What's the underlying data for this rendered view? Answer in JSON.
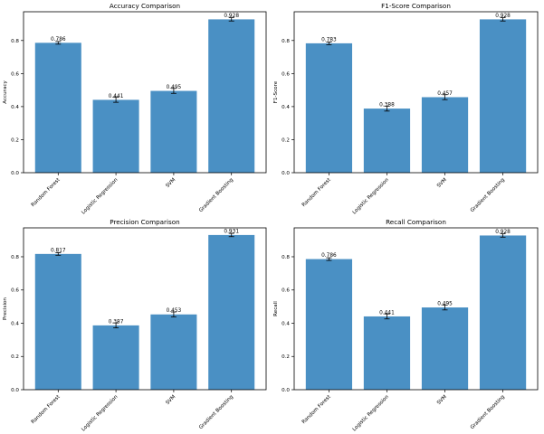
{
  "figure": {
    "bar_color": "#4a90c4",
    "error_color": "#000000",
    "axis_color": "#000000"
  },
  "chart_data": [
    {
      "type": "bar",
      "title": "Accuracy Comparison",
      "xlabel": "",
      "ylabel": "Accuracy",
      "categories": [
        "Random Forest",
        "Logistic Regression",
        "SVM",
        "Gradient Boosting"
      ],
      "values": [
        0.786,
        0.441,
        0.495,
        0.928
      ],
      "value_labels": [
        "0.786",
        "0.441",
        "0.495",
        "0.928"
      ],
      "errors": [
        0.008,
        0.015,
        0.015,
        0.01
      ],
      "ylim": [
        0,
        0.974
      ],
      "yticks": [
        0.0,
        0.2,
        0.4,
        0.6,
        0.8
      ],
      "ytick_labels": [
        "0.0",
        "0.2",
        "0.4",
        "0.6",
        "0.8"
      ],
      "grid": false
    },
    {
      "type": "bar",
      "title": "F1-Score Comparison",
      "xlabel": "",
      "ylabel": "F1-Score",
      "categories": [
        "Random Forest",
        "Logistic Regression",
        "SVM",
        "Gradient Boosting"
      ],
      "values": [
        0.783,
        0.388,
        0.457,
        0.928
      ],
      "value_labels": [
        "0.783",
        "0.388",
        "0.457",
        "0.928"
      ],
      "errors": [
        0.008,
        0.015,
        0.015,
        0.01
      ],
      "ylim": [
        0,
        0.974
      ],
      "yticks": [
        0.0,
        0.2,
        0.4,
        0.6,
        0.8
      ],
      "ytick_labels": [
        "0.0",
        "0.2",
        "0.4",
        "0.6",
        "0.8"
      ],
      "grid": false
    },
    {
      "type": "bar",
      "title": "Precision Comparison",
      "xlabel": "",
      "ylabel": "Precision",
      "categories": [
        "Random Forest",
        "Logistic Regression",
        "SVM",
        "Gradient Boosting"
      ],
      "values": [
        0.817,
        0.387,
        0.453,
        0.931
      ],
      "value_labels": [
        "0.817",
        "0.387",
        "0.453",
        "0.931"
      ],
      "errors": [
        0.008,
        0.015,
        0.015,
        0.01
      ],
      "ylim": [
        0,
        0.974
      ],
      "yticks": [
        0.0,
        0.2,
        0.4,
        0.6,
        0.8
      ],
      "ytick_labels": [
        "0.0",
        "0.2",
        "0.4",
        "0.6",
        "0.8"
      ],
      "grid": false
    },
    {
      "type": "bar",
      "title": "Recall Comparison",
      "xlabel": "",
      "ylabel": "Recall",
      "categories": [
        "Random Forest",
        "Logistic Regression",
        "SVM",
        "Gradient Boosting"
      ],
      "values": [
        0.786,
        0.441,
        0.495,
        0.928
      ],
      "value_labels": [
        "0.786",
        "0.441",
        "0.495",
        "0.928"
      ],
      "errors": [
        0.008,
        0.015,
        0.015,
        0.01
      ],
      "ylim": [
        0,
        0.974
      ],
      "yticks": [
        0.0,
        0.2,
        0.4,
        0.6,
        0.8
      ],
      "ytick_labels": [
        "0.0",
        "0.2",
        "0.4",
        "0.6",
        "0.8"
      ],
      "grid": false
    }
  ]
}
